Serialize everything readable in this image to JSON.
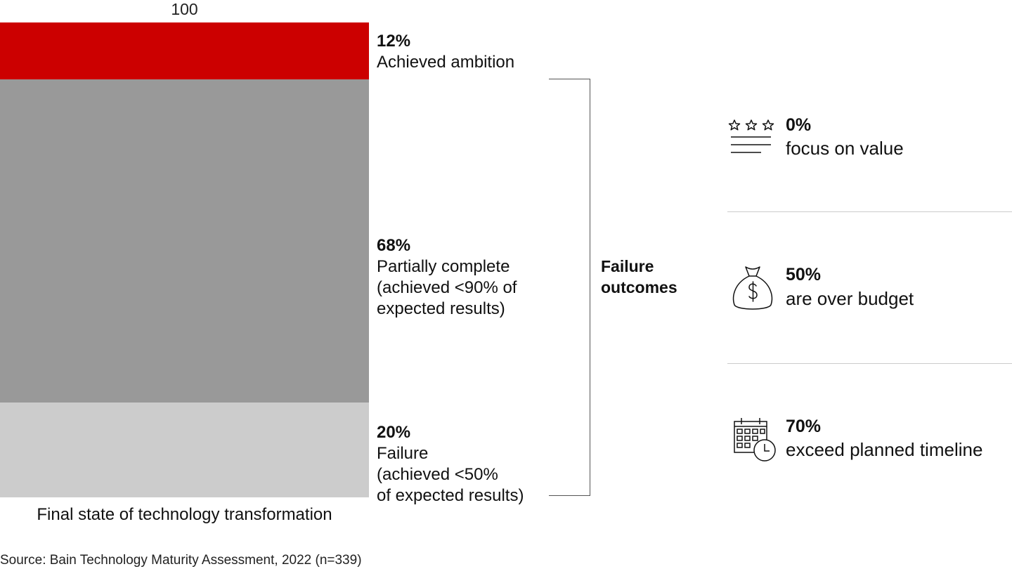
{
  "chart_data": {
    "type": "bar",
    "stacked": true,
    "total_label": "100",
    "xlabel": "Final state of technology transformation",
    "ylim": [
      0,
      100
    ],
    "segments": [
      {
        "percent_label": "12%",
        "value": 12,
        "label": "Achieved ambition",
        "color": "#cc0000"
      },
      {
        "percent_label": "68%",
        "value": 68,
        "label": "Partially complete\n(achieved <90% of\nexpected results)",
        "color": "#999999"
      },
      {
        "percent_label": "20%",
        "value": 20,
        "label": "Failure\n(achieved <50%\nof expected results)",
        "color": "#cccccc"
      }
    ],
    "bracket_label": "Failure\noutcomes",
    "outcomes": [
      {
        "percent_label": "0%",
        "value": 0,
        "label": "focus on value",
        "icon": "rating-stars-icon"
      },
      {
        "percent_label": "50%",
        "value": 50,
        "label": "are over budget",
        "icon": "money-bag-icon"
      },
      {
        "percent_label": "70%",
        "value": 70,
        "label": "exceed planned timeline",
        "icon": "calendar-clock-icon"
      }
    ]
  },
  "source": "Source: Bain Technology Maturity Assessment, 2022 (n=339)"
}
